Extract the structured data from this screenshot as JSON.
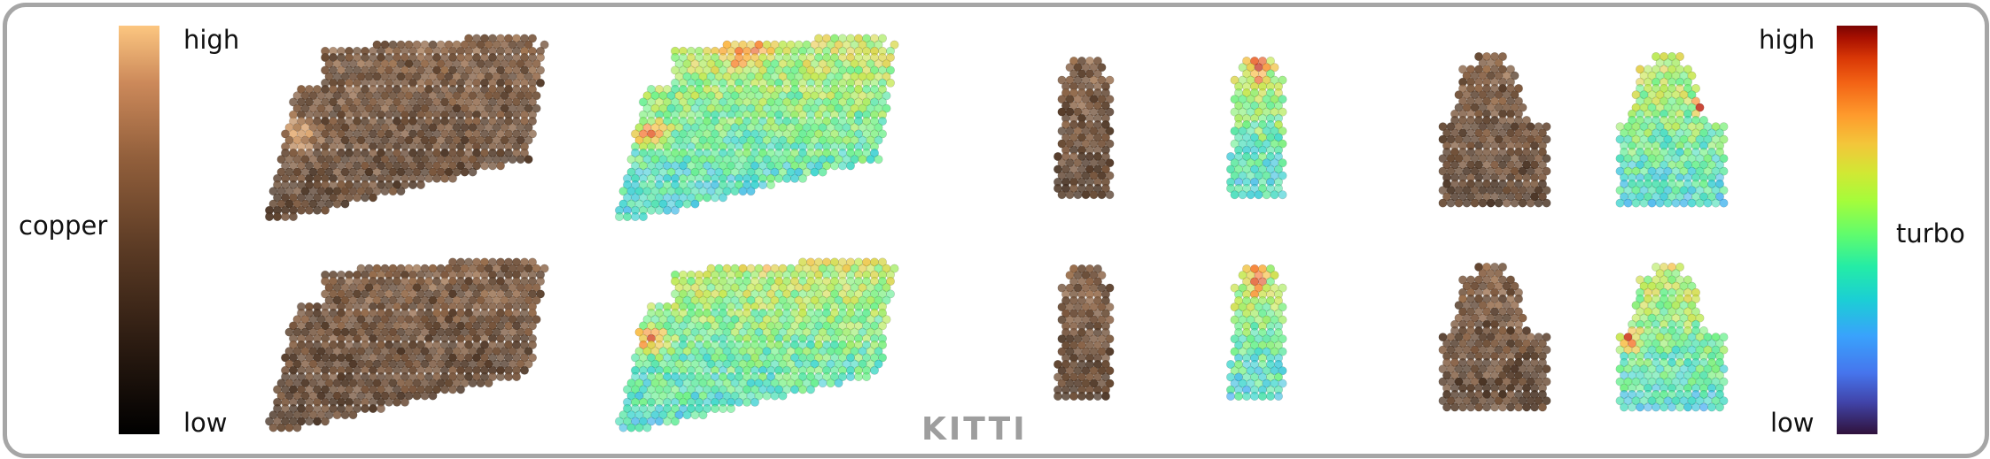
{
  "caption": "KITTI",
  "legend_left": {
    "name": "copper",
    "high": "high",
    "low": "low"
  },
  "legend_right": {
    "name": "turbo",
    "high": "high",
    "low": "low"
  },
  "colors": {
    "frame": "#a6a6a6",
    "caption": "#9e9e9e",
    "copper_low": "#000000",
    "copper_high": "#fcc680",
    "turbo_low": "#30123b",
    "turbo_high": "#7a0403"
  }
}
